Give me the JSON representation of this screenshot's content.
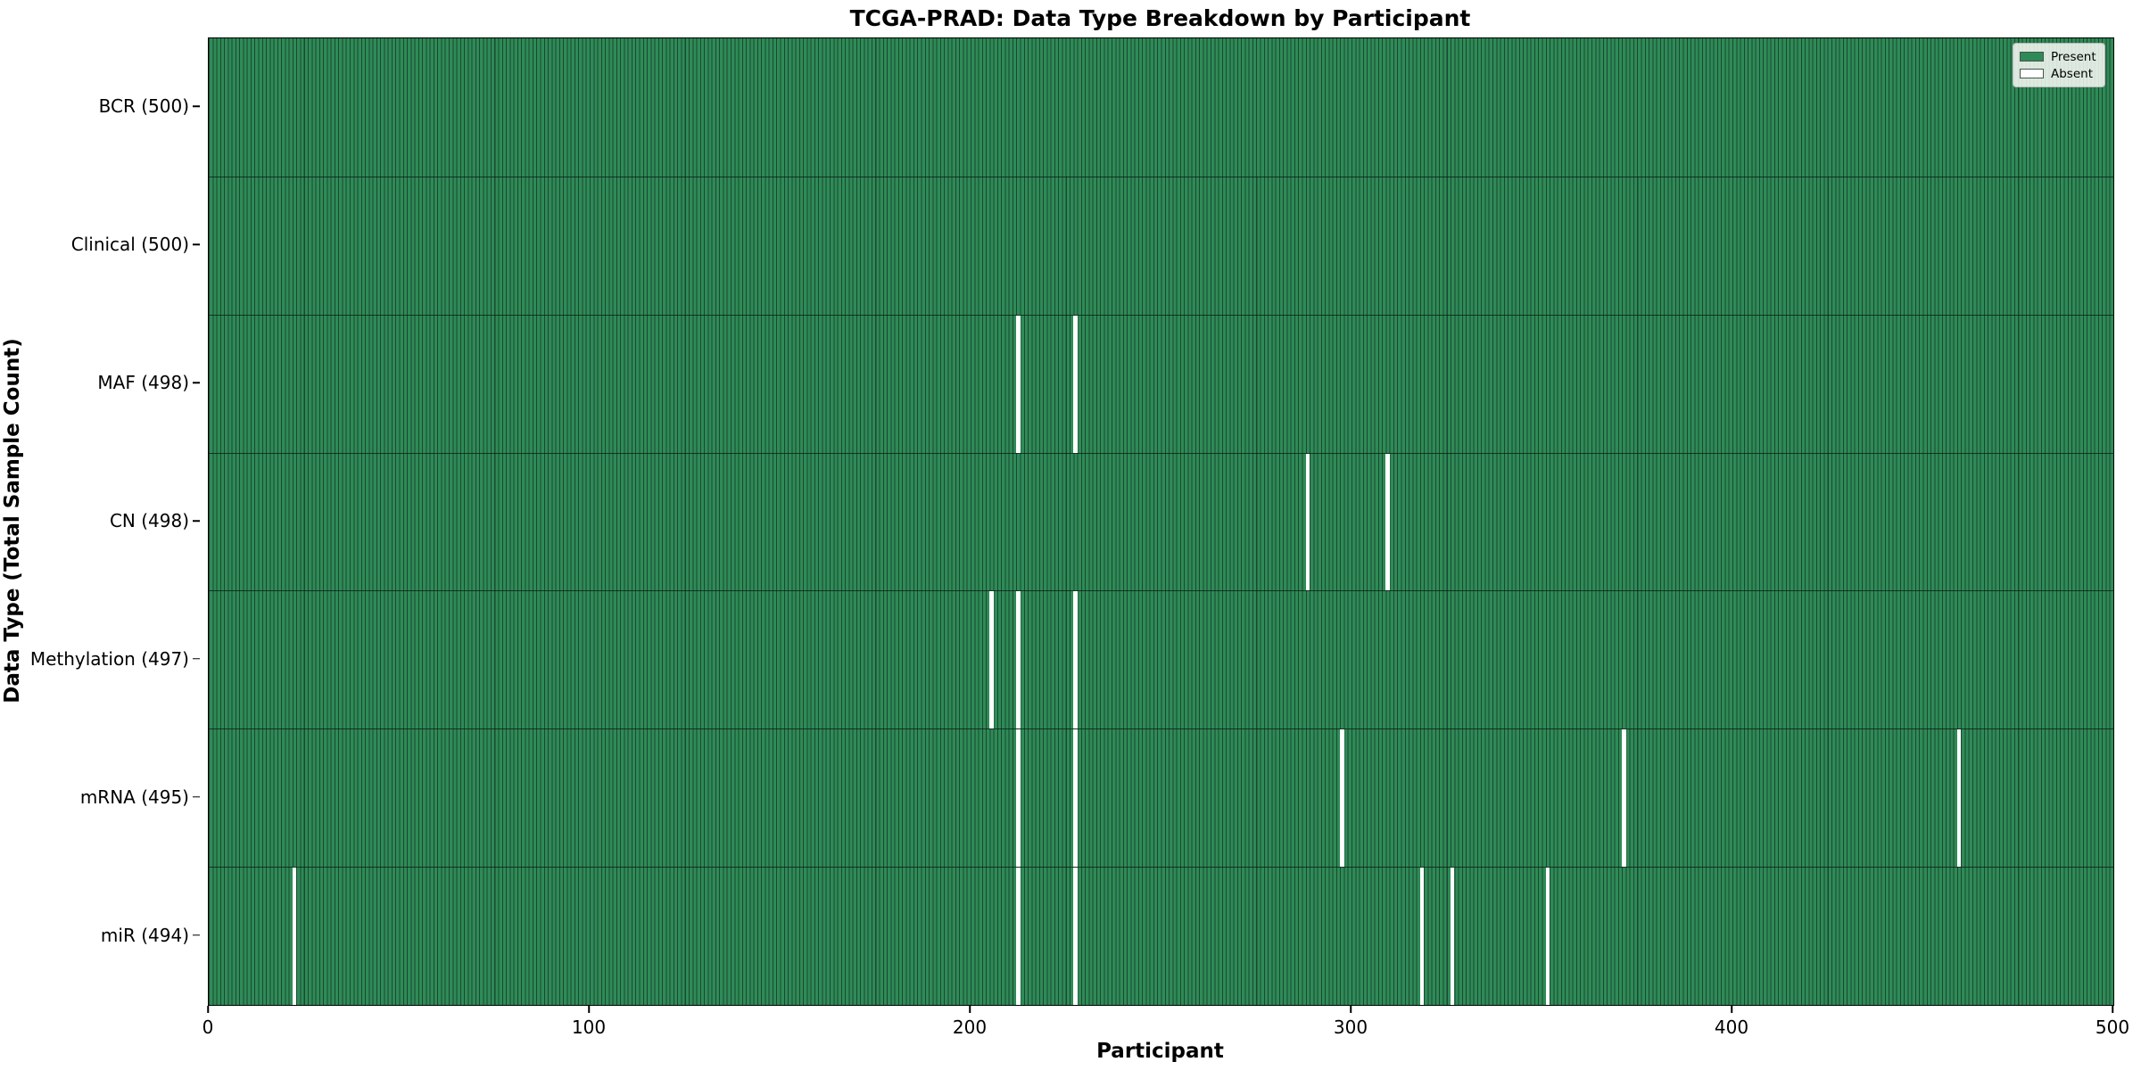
{
  "title": "TCGA-PRAD: Data Type Breakdown by Participant",
  "axes": {
    "xlabel": "Participant",
    "ylabel": "Data Type (Total Sample Count)",
    "x_ticks": [
      0,
      100,
      200,
      300,
      400,
      500
    ]
  },
  "legend": {
    "position": "upper right",
    "items": [
      {
        "label": "Present",
        "color": "#2e8b57"
      },
      {
        "label": "Absent",
        "color": "#ffffff"
      }
    ]
  },
  "colors": {
    "present_fill": "#2e8b57",
    "bar_edge": "#1c4731",
    "absent_fill": "#ffffff",
    "row_divider": "#0a190f",
    "axis_spine": "#000000",
    "legend_bg": "#fafaf7"
  },
  "chart_data": {
    "type": "heatmap",
    "title": "TCGA-PRAD: Data Type Breakdown by Participant",
    "xlabel": "Participant",
    "ylabel": "Data Type (Total Sample Count)",
    "x_range": [
      0,
      500
    ],
    "n_participants": 500,
    "grid": false,
    "legend_entries": [
      "Present",
      "Absent"
    ],
    "rows": [
      {
        "label": "BCR (500)",
        "name": "BCR",
        "total": 500,
        "absent_participants": []
      },
      {
        "label": "Clinical (500)",
        "name": "Clinical",
        "total": 500,
        "absent_participants": []
      },
      {
        "label": "MAF (498)",
        "name": "MAF",
        "total": 498,
        "absent_participants": [
          212,
          227
        ]
      },
      {
        "label": "CN (498)",
        "name": "CN",
        "total": 498,
        "absent_participants": [
          288,
          309
        ]
      },
      {
        "label": "Methylation (497)",
        "name": "Methylation",
        "total": 497,
        "absent_participants": [
          205,
          212,
          227
        ]
      },
      {
        "label": "mRNA (495)",
        "name": "mRNA",
        "total": 495,
        "absent_participants": [
          212,
          227,
          297,
          371,
          459
        ]
      },
      {
        "label": "miR (494)",
        "name": "miR",
        "total": 494,
        "absent_participants": [
          22,
          212,
          227,
          318,
          326,
          351
        ]
      }
    ]
  }
}
